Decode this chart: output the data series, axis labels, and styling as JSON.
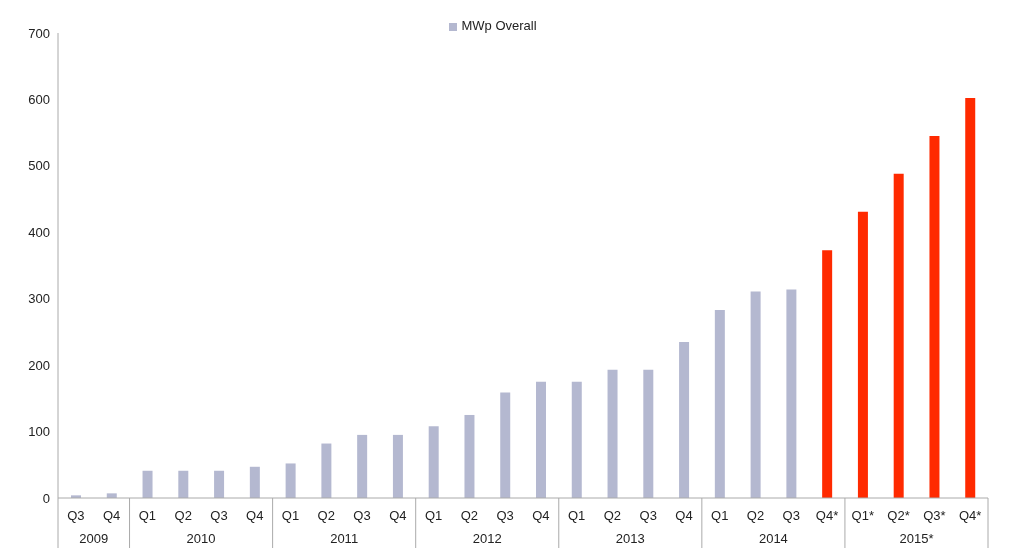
{
  "chart_data": {
    "type": "bar",
    "categories": [
      "Q3",
      "Q4",
      "Q1",
      "Q2",
      "Q3",
      "Q4",
      "Q1",
      "Q2",
      "Q3",
      "Q4",
      "Q1",
      "Q2",
      "Q3",
      "Q4",
      "Q1",
      "Q2",
      "Q3",
      "Q4",
      "Q1",
      "Q2",
      "Q3",
      "Q4*",
      "Q1*",
      "Q2*",
      "Q3*",
      "Q4*"
    ],
    "series": [
      {
        "name": "MWp Overall",
        "color": "#b4b8d0",
        "values": [
          4,
          7,
          41,
          41,
          41,
          47,
          52,
          82,
          95,
          95,
          108,
          125,
          159,
          175,
          175,
          193,
          193,
          235,
          283,
          311,
          314,
          373,
          431,
          488,
          545,
          602
        ],
        "colors": [
          "#b4b8d0",
          "#b4b8d0",
          "#b4b8d0",
          "#b4b8d0",
          "#b4b8d0",
          "#b4b8d0",
          "#b4b8d0",
          "#b4b8d0",
          "#b4b8d0",
          "#b4b8d0",
          "#b4b8d0",
          "#b4b8d0",
          "#b4b8d0",
          "#b4b8d0",
          "#b4b8d0",
          "#b4b8d0",
          "#b4b8d0",
          "#b4b8d0",
          "#b4b8d0",
          "#b4b8d0",
          "#b4b8d0",
          "#ff2a00",
          "#ff2a00",
          "#ff2a00",
          "#ff2a00",
          "#ff2a00"
        ]
      }
    ],
    "annotations": [
      "2009",
      "2010",
      "2011",
      "2012",
      "2013",
      "2014",
      "2015*"
    ],
    "ylim": [
      0,
      700
    ],
    "yticks": [
      0,
      100,
      200,
      300,
      400,
      500,
      600,
      700
    ],
    "grid": false,
    "legend": "top"
  }
}
